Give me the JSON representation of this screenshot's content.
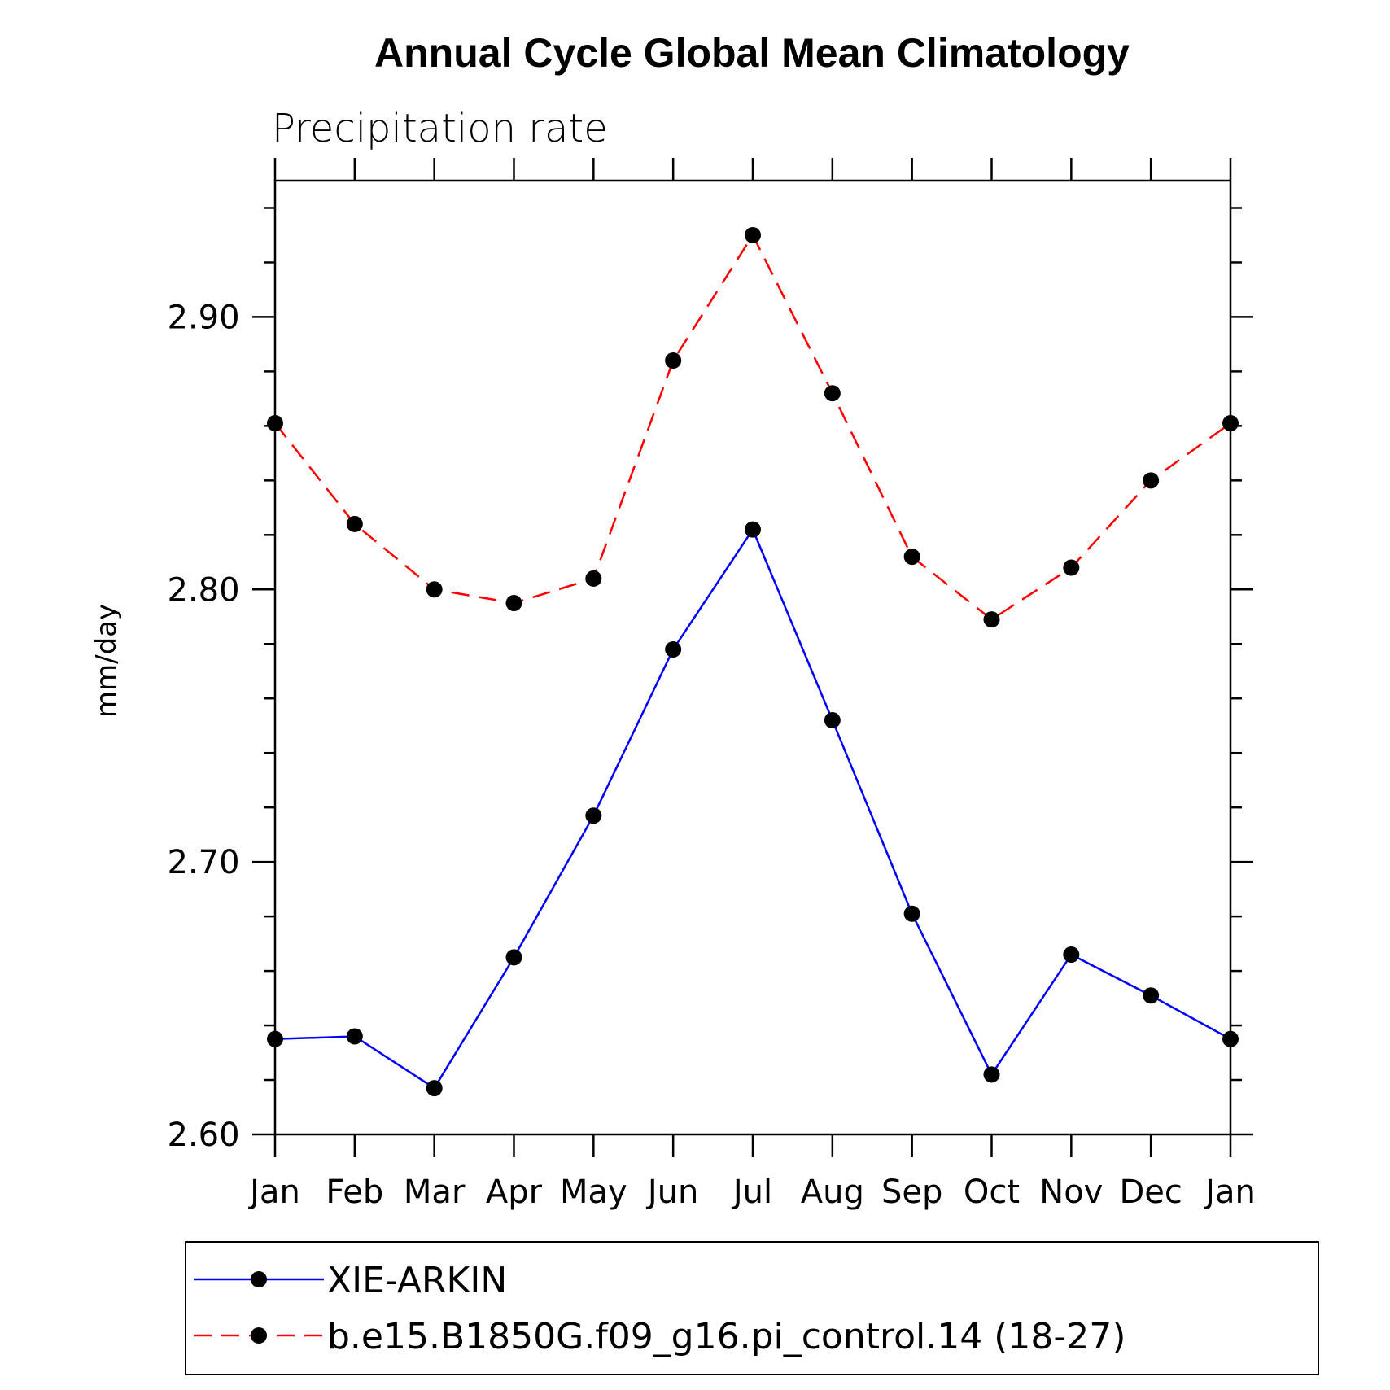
{
  "chart_data": {
    "type": "line",
    "title": "Annual Cycle Global Mean Climatology",
    "subtitle": "Precipitation rate",
    "xlabel": "",
    "ylabel": "mm/day",
    "categories": [
      "Jan",
      "Feb",
      "Mar",
      "Apr",
      "May",
      "Jun",
      "Jul",
      "Aug",
      "Sep",
      "Oct",
      "Nov",
      "Dec",
      "Jan"
    ],
    "ylim": [
      2.6,
      2.95
    ],
    "yticks_major": [
      "2.60",
      "2.70",
      "2.80",
      "2.90"
    ],
    "ytick_step_minor": 0.02,
    "grid": false,
    "legend_position": "bottom",
    "series": [
      {
        "name": "XIE-ARKIN",
        "color": "#0000ff",
        "style": "solid",
        "marker": "filled-circle",
        "values": [
          2.635,
          2.636,
          2.617,
          2.665,
          2.717,
          2.778,
          2.822,
          2.752,
          2.681,
          2.622,
          2.666,
          2.651,
          2.635
        ]
      },
      {
        "name": "b.e15.B1850G.f09_g16.pi_control.14 (18-27)",
        "color": "#ff0000",
        "style": "dashed",
        "marker": "filled-circle",
        "values": [
          2.861,
          2.824,
          2.8,
          2.795,
          2.804,
          2.884,
          2.93,
          2.872,
          2.812,
          2.789,
          2.808,
          2.84,
          2.861
        ]
      }
    ]
  }
}
